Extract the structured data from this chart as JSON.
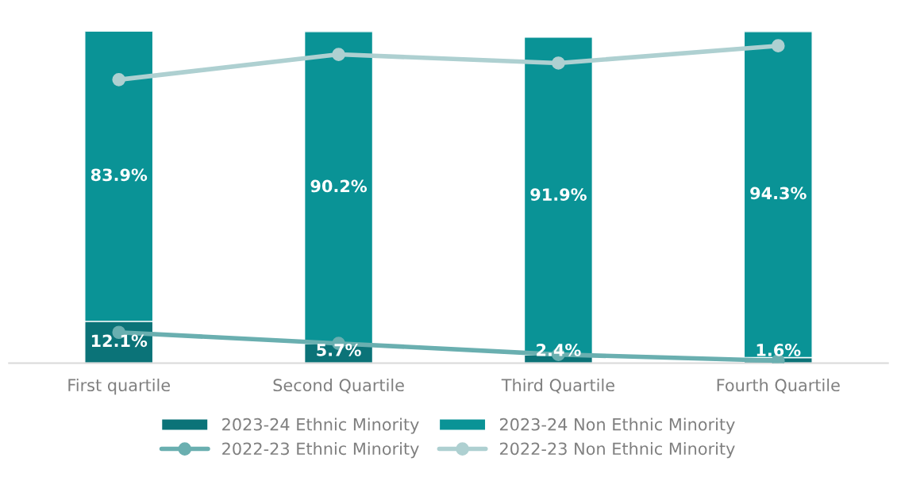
{
  "chart_data": {
    "type": "bar",
    "stacked": true,
    "categories": [
      "First quartile",
      "Second Quartile",
      "Third Quartile",
      "Fourth Quartile"
    ],
    "ylim": [
      0,
      96
    ],
    "tick_labels": "x",
    "legend": "bottom",
    "grid": false,
    "series": [
      {
        "name": "2023-24 Ethnic Minority",
        "color": "#0b7378",
        "values": [
          12.1,
          5.7,
          2.4,
          1.6
        ],
        "value_labels": [
          "12.1%",
          "5.7%",
          "2.4%",
          "1.6%"
        ]
      },
      {
        "name": "2023-24 Non Ethnic Minority",
        "color": "#0a9396",
        "values": [
          83.9,
          90.2,
          91.9,
          94.3
        ],
        "value_labels": [
          "83.9%",
          "90.2%",
          "91.9%",
          "94.3%"
        ]
      },
      {
        "name": "2022-23 Ethnic Minority",
        "type": "line",
        "color": "#6aafb0",
        "marker": "circle",
        "values": [
          8.9,
          5.7,
          2.5,
          0.7
        ]
      },
      {
        "name": "2022-23 Non Ethnic Minority",
        "type": "line",
        "color": "#aed0d1",
        "marker": "circle",
        "values": [
          82.0,
          89.3,
          86.8,
          91.8
        ]
      }
    ]
  }
}
